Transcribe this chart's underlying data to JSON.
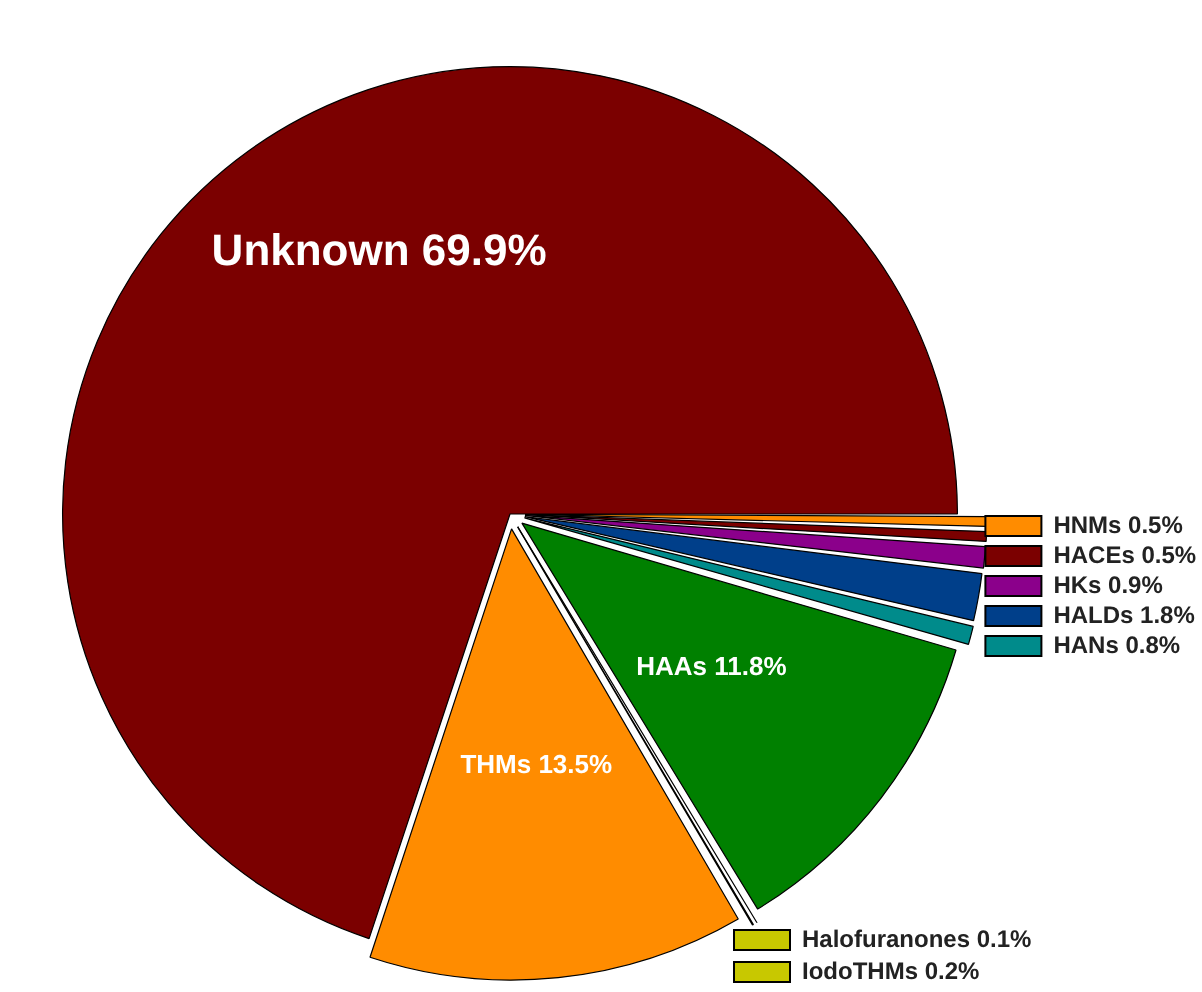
{
  "chart_data": {
    "type": "pie",
    "categories": [
      "HNMs",
      "HACEs",
      "HKs",
      "HALDs",
      "HANs",
      "HAAs",
      "Halofuranones",
      "IodoTHMs",
      "THMs",
      "Unknown"
    ],
    "values": [
      0.5,
      0.5,
      0.9,
      1.8,
      0.8,
      11.8,
      0.1,
      0.2,
      13.5,
      69.9
    ],
    "value_labels": [
      "0.5%",
      "0.5%",
      "0.9%",
      "1.8%",
      "0.8%",
      "11.8%",
      "0.1%",
      "0.2%",
      "13.5%",
      "69.9%"
    ],
    "colors": [
      "#ff8c00",
      "#7b0000",
      "#8b008b",
      "#003f8a",
      "#008b8b",
      "#008000",
      "#c8c800",
      "#c8c800",
      "#ff8c00",
      "#7b0000"
    ],
    "legend": "right"
  }
}
